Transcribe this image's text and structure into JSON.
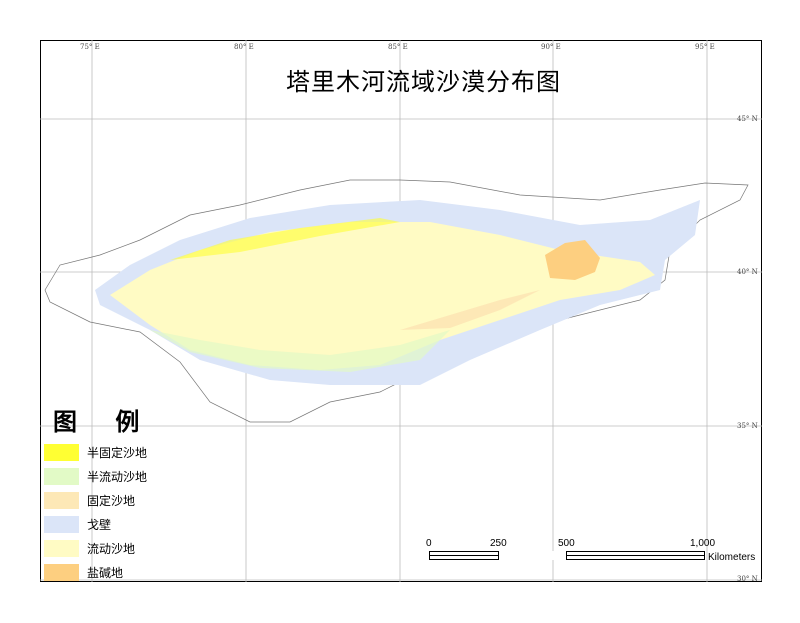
{
  "title": "塔里木河流域沙漠分布图",
  "grid": {
    "lon_labels": [
      "75° E",
      "80° E",
      "85° E",
      "90° E",
      "95° E"
    ],
    "lat_labels": [
      "45° N",
      "40° N",
      "35° N",
      "30° N"
    ]
  },
  "legend": {
    "title": "图 例",
    "items": [
      {
        "label": "半固定沙地",
        "color": "#ffff33"
      },
      {
        "label": "半流动沙地",
        "color": "#e2fac6"
      },
      {
        "label": "固定沙地",
        "color": "#fde8b6"
      },
      {
        "label": "戈壁",
        "color": "#dbe5f8"
      },
      {
        "label": "流动沙地",
        "color": "#fffbc4"
      },
      {
        "label": "盐碱地",
        "color": "#fdcf80"
      }
    ]
  },
  "scalebar": {
    "ticks": [
      "0",
      "250",
      "500",
      "1,000"
    ],
    "unit": "Kilometers"
  }
}
